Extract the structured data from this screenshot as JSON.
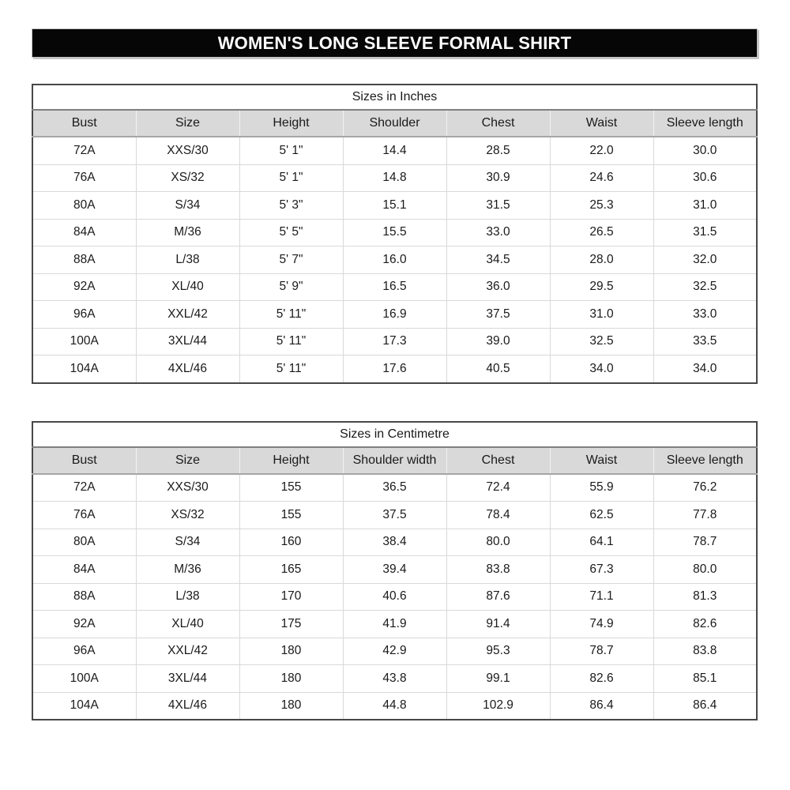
{
  "page_title": "WOMEN'S LONG SLEEVE FORMAL SHIRT",
  "colors": {
    "title_bar_bg": "#060606",
    "title_bar_text": "#ffffff",
    "header_row_bg": "#d9d9d9",
    "table_border": "#474747",
    "grid_line": "#d9d9d9",
    "text": "#1a1a1a"
  },
  "tables": [
    {
      "title": "Sizes in Inches",
      "headers": [
        "Bust",
        "Size",
        "Height",
        "Shoulder",
        "Chest",
        "Waist",
        "Sleeve length"
      ],
      "rows": [
        [
          "72A",
          "XXS/30",
          "5' 1\"",
          "14.4",
          "28.5",
          "22.0",
          "30.0"
        ],
        [
          "76A",
          "XS/32",
          "5' 1\"",
          "14.8",
          "30.9",
          "24.6",
          "30.6"
        ],
        [
          "80A",
          "S/34",
          "5' 3\"",
          "15.1",
          "31.5",
          "25.3",
          "31.0"
        ],
        [
          "84A",
          "M/36",
          "5' 5\"",
          "15.5",
          "33.0",
          "26.5",
          "31.5"
        ],
        [
          "88A",
          "L/38",
          "5' 7\"",
          "16.0",
          "34.5",
          "28.0",
          "32.0"
        ],
        [
          "92A",
          "XL/40",
          "5' 9\"",
          "16.5",
          "36.0",
          "29.5",
          "32.5"
        ],
        [
          "96A",
          "XXL/42",
          "5' 11\"",
          "16.9",
          "37.5",
          "31.0",
          "33.0"
        ],
        [
          "100A",
          "3XL/44",
          "5' 11\"",
          "17.3",
          "39.0",
          "32.5",
          "33.5"
        ],
        [
          "104A",
          "4XL/46",
          "5' 11\"",
          "17.6",
          "40.5",
          "34.0",
          "34.0"
        ]
      ]
    },
    {
      "title": "Sizes in Centimetre",
      "headers": [
        "Bust",
        "Size",
        "Height",
        "Shoulder width",
        "Chest",
        "Waist",
        "Sleeve length"
      ],
      "rows": [
        [
          "72A",
          "XXS/30",
          "155",
          "36.5",
          "72.4",
          "55.9",
          "76.2"
        ],
        [
          "76A",
          "XS/32",
          "155",
          "37.5",
          "78.4",
          "62.5",
          "77.8"
        ],
        [
          "80A",
          "S/34",
          "160",
          "38.4",
          "80.0",
          "64.1",
          "78.7"
        ],
        [
          "84A",
          "M/36",
          "165",
          "39.4",
          "83.8",
          "67.3",
          "80.0"
        ],
        [
          "88A",
          "L/38",
          "170",
          "40.6",
          "87.6",
          "71.1",
          "81.3"
        ],
        [
          "92A",
          "XL/40",
          "175",
          "41.9",
          "91.4",
          "74.9",
          "82.6"
        ],
        [
          "96A",
          "XXL/42",
          "180",
          "42.9",
          "95.3",
          "78.7",
          "83.8"
        ],
        [
          "100A",
          "3XL/44",
          "180",
          "43.8",
          "99.1",
          "82.6",
          "85.1"
        ],
        [
          "104A",
          "4XL/46",
          "180",
          "44.8",
          "102.9",
          "86.4",
          "86.4"
        ]
      ]
    }
  ]
}
